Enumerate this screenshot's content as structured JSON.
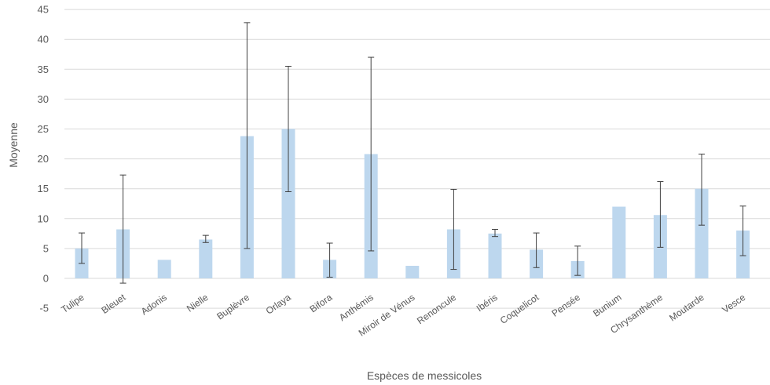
{
  "chart_data": {
    "type": "bar",
    "xlabel": "Espèces de messicoles",
    "ylabel": "Moyenne",
    "ylim": [
      -5,
      45
    ],
    "yticks": [
      -5,
      0,
      5,
      10,
      15,
      20,
      25,
      30,
      35,
      40,
      45
    ],
    "grid": true,
    "categories": [
      "Tulipe",
      "Bleuet",
      "Adonis",
      "Nielle",
      "Buplèvre",
      "Orlaya",
      "Bifora",
      "Anthémis",
      "Miroir de Vénus",
      "Renoncule",
      "Ibéris",
      "Coquelicot",
      "Pensée",
      "Bunium",
      "Chrysanthème",
      "Moutarde",
      "Vesce"
    ],
    "values": [
      5,
      8.2,
      3.1,
      6.5,
      23.8,
      25,
      3.1,
      20.8,
      2.1,
      8.2,
      7.5,
      4.8,
      2.9,
      12,
      10.6,
      15,
      8
    ],
    "error_bars": [
      [
        2.5,
        7.6
      ],
      [
        -0.8,
        17.3
      ],
      [
        3.1,
        3.1
      ],
      [
        6.0,
        7.2
      ],
      [
        5.0,
        42.8
      ],
      [
        14.5,
        35.5
      ],
      [
        0.2,
        5.9
      ],
      [
        4.6,
        37.0
      ],
      [
        2.1,
        2.1
      ],
      [
        1.5,
        14.9
      ],
      [
        7.0,
        8.2
      ],
      [
        1.8,
        7.6
      ],
      [
        0.5,
        5.4
      ],
      [
        12,
        12
      ],
      [
        5.2,
        16.2
      ],
      [
        8.9,
        20.8
      ],
      [
        3.8,
        12.1
      ]
    ],
    "colors": {
      "bar": "#bdd7ee",
      "error": "#404040",
      "grid": "#d9d9d9",
      "text": "#595959"
    }
  }
}
